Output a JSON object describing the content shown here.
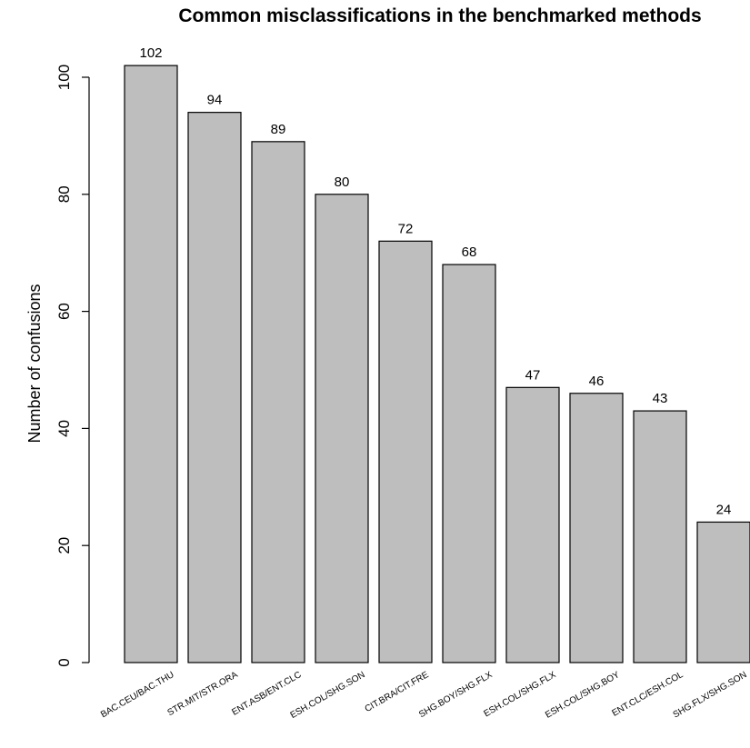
{
  "chart_data": {
    "type": "bar",
    "title": "Common misclassifications in the benchmarked methods",
    "xlabel": "",
    "ylabel": "Number of confusions",
    "categories": [
      "BAC.CEU/BAC.THU",
      "STR.MIT/STR.ORA",
      "ENT.ASB/ENT.CLC",
      "ESH.COL/SHG.SON",
      "CIT.BRA/CIT.FRE",
      "SHG.BOY/SHG.FLX",
      "ESH.COL/SHG.FLX",
      "ESH.COL/SHG.BOY",
      "ENT.CLC/ESH.COL",
      "SHG.FLX/SHG.SON"
    ],
    "values": [
      102,
      94,
      89,
      80,
      72,
      68,
      47,
      46,
      43,
      24
    ],
    "data_labels": [
      "102",
      "94",
      "89",
      "80",
      "72",
      "68",
      "47",
      "46",
      "43",
      "24"
    ],
    "ylim": [
      0,
      102
    ],
    "yticks": [
      0,
      20,
      40,
      60,
      80,
      100
    ],
    "ytick_labels": [
      "0",
      "20",
      "40",
      "60",
      "80",
      "100"
    ],
    "grid": false,
    "legend": "none",
    "bar_color": "#bebebe",
    "bar_edge_color": "#000000"
  }
}
